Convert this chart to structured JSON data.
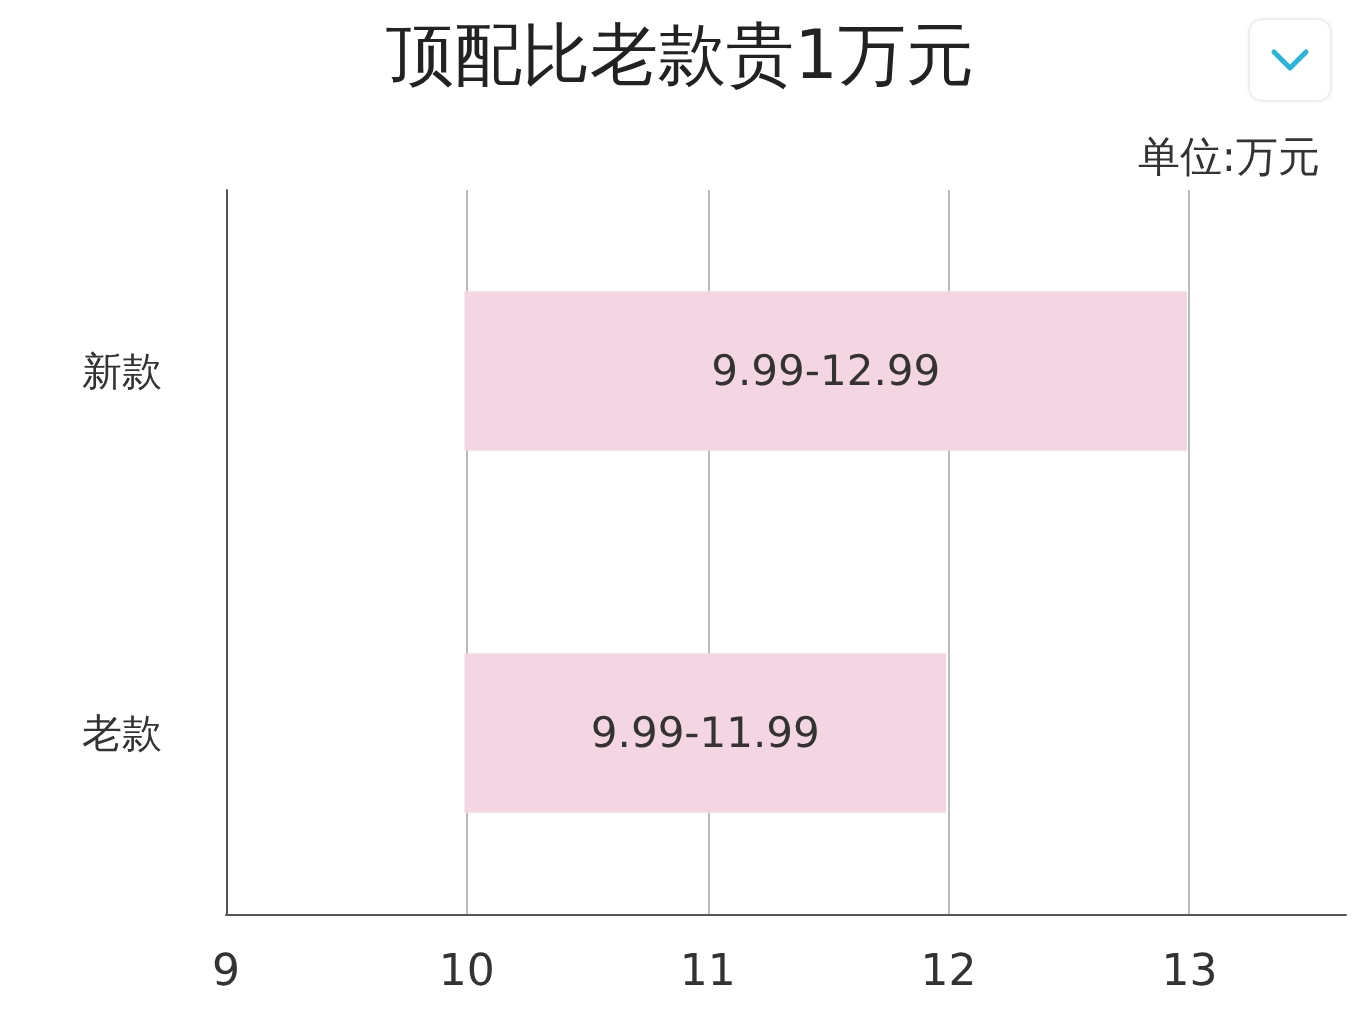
{
  "chart_data": {
    "type": "bar",
    "orientation": "horizontal",
    "title": "顶配比老款贵1万元",
    "annotations": [
      "单位:万元"
    ],
    "categories": [
      "新款",
      "老款"
    ],
    "series": [
      {
        "color": "#f3d6e2",
        "values": [
          3,
          2
        ],
        "base": [
          9.99,
          9.99
        ],
        "value_labels": [
          "9.99-12.99",
          "9.99-11.99"
        ]
      }
    ],
    "xlim": [
      9,
      13.65
    ],
    "xticks": [
      9,
      10,
      11,
      12,
      13
    ],
    "grid": "x"
  }
}
